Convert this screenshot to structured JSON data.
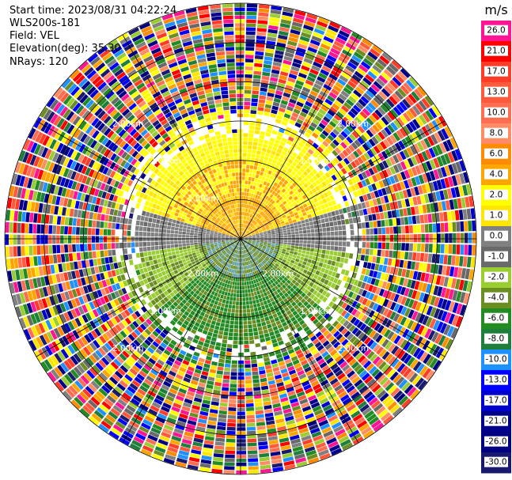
{
  "info": {
    "start_time": "Start time: 2023/08/31 04:22:24",
    "instrument": "WLS200s-181",
    "field": "Field: VEL",
    "elevation": "Elevation(deg): 35.30",
    "nrays": "NRays: 120"
  },
  "chart_data": {
    "type": "heatmap",
    "projection": "polar PPI",
    "field": "VEL",
    "nrays": 120,
    "range_rings_km": [
      0.5,
      1.0,
      1.5,
      2.0,
      2.5,
      3.0
    ],
    "ring_labels": [
      "1.00km",
      "2.00km",
      "2.00km",
      "1.00km",
      "2.00km",
      "2.00km",
      "1.00km",
      "2.00km",
      "2.00km",
      "1.00km",
      "2.00km"
    ],
    "radial_spokes_deg": [
      0,
      30,
      60,
      90,
      120,
      150,
      180,
      210,
      240,
      270,
      300,
      330
    ],
    "colorbar": {
      "unit": "m/s",
      "tick_labels": [
        "26.0",
        "21.0",
        "17.0",
        "13.0",
        "10.0",
        "8.0",
        "6.0",
        "4.0",
        "2.0",
        "1.0",
        "0.0",
        "-1.0",
        "-2.0",
        "-4.0",
        "-6.0",
        "-8.0",
        "-10.0",
        "-13.0",
        "-17.0",
        "-21.0",
        "-26.0",
        "-30.0"
      ],
      "colors": [
        "#ff1493",
        "#ff0000",
        "#ff3c28",
        "#ff5a3c",
        "#ff6e50",
        "#ff8c64",
        "#ff8c00",
        "#ffa500",
        "#ffff00",
        "#ffe600",
        "#808080",
        "#696969",
        "#9acd32",
        "#6b8e23",
        "#228b22",
        "#1e7f3c",
        "#1e90ff",
        "#0000ff",
        "#0000cd",
        "#00008b",
        "#000080",
        "#191970"
      ]
    },
    "regions": [
      {
        "sector": "north",
        "range_km": [
          0,
          1.5
        ],
        "velocity_ms": [
          2.0,
          6.0
        ],
        "description_color": "yellow-orange"
      },
      {
        "sector": "west-east band",
        "range_km": [
          0,
          1.5
        ],
        "velocity_ms": [
          -1.0,
          1.0
        ],
        "description_color": "gray"
      },
      {
        "sector": "south",
        "range_km": [
          0,
          1.5
        ],
        "velocity_ms": [
          -6.0,
          -2.0
        ],
        "description_color": "green"
      },
      {
        "sector": "all",
        "range_km": [
          1.5,
          3.0
        ],
        "velocity_ms": [
          -30.0,
          26.0
        ],
        "description_color": "noise"
      }
    ]
  }
}
